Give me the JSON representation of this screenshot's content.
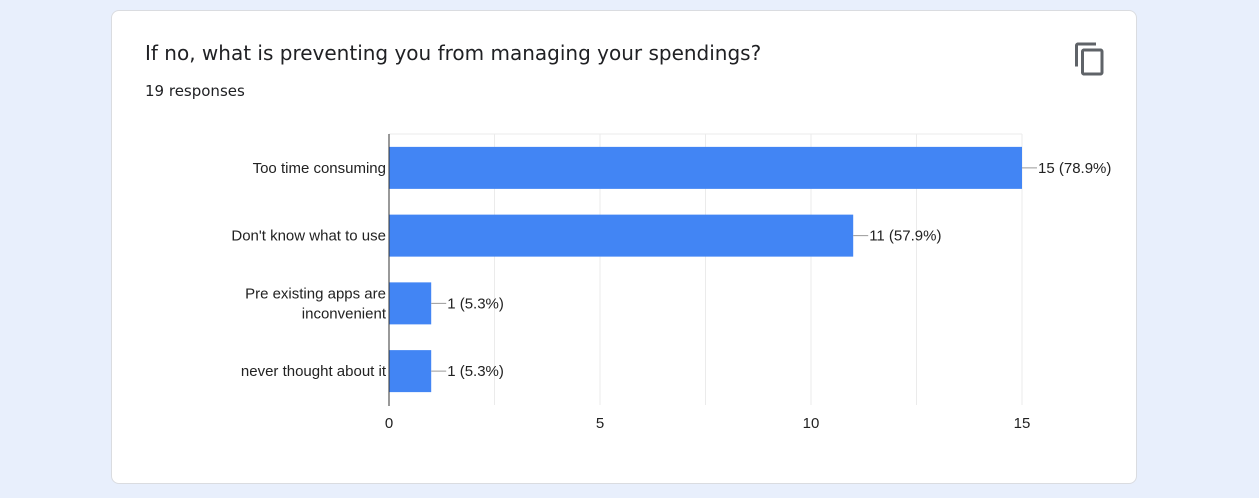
{
  "card": {
    "title": "If no, what is preventing you from managing your spendings?",
    "responses": "19 responses",
    "copy_icon": "copy-icon"
  },
  "colors": {
    "bar": "#4285f4",
    "background": "#e8effc",
    "card": "#ffffff",
    "grid": "#ebebeb",
    "axis": "#333333",
    "text": "#222222"
  },
  "chart_data": {
    "type": "bar",
    "orientation": "horizontal",
    "categories": [
      [
        "Too time consuming"
      ],
      [
        "Don't know what to use"
      ],
      [
        "Pre existing apps are",
        "inconvenient"
      ],
      [
        "never thought about it"
      ]
    ],
    "values": [
      15,
      11,
      1,
      1
    ],
    "value_labels": [
      "15 (78.9%)",
      "11 (57.9%)",
      "1 (5.3%)",
      "1 (5.3%)"
    ],
    "xlim": [
      0,
      15
    ],
    "xticks": [
      0,
      5,
      10,
      15
    ],
    "xtick_labels": [
      "0",
      "5",
      "10",
      "15"
    ],
    "grid": true
  }
}
